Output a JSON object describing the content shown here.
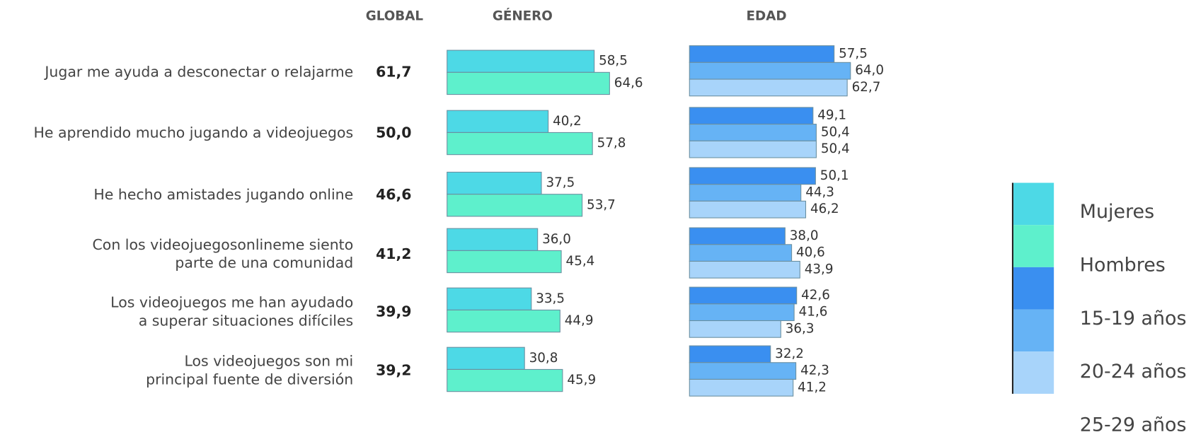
{
  "chart_data": [
    {
      "type": "bar",
      "title": "GÉNERO",
      "categories": [
        "Jugar me ayuda a desconectar o relajarme",
        "He aprendido mucho jugando a videojuegos",
        "He hecho amistades jugando online",
        "Con los videojuegosonlineme siento\nparte de una comunidad",
        "Los videojuegos me han ayudado\na superar situaciones difíciles",
        "Los videojuegos son mi\nprincipal fuente de diversión"
      ],
      "series": [
        {
          "name": "Mujeres",
          "color": "#4dd9e6",
          "values": [
            58.5,
            40.2,
            37.5,
            36.0,
            33.5,
            30.8
          ],
          "value_labels": [
            "58,5",
            "40,2",
            "37,5",
            "36,0",
            "33,5",
            "30,8"
          ]
        },
        {
          "name": "Hombres",
          "color": "#5ef0cc",
          "values": [
            64.6,
            57.8,
            53.7,
            45.4,
            44.9,
            45.9
          ],
          "value_labels": [
            "64,6",
            "57,8",
            "53,7",
            "45,4",
            "44,9",
            "45,9"
          ]
        }
      ]
    },
    {
      "type": "bar",
      "title": "EDAD",
      "series": [
        {
          "name": "15-19 años",
          "color": "#3a8ff0",
          "values": [
            57.5,
            49.1,
            50.1,
            38.0,
            42.6,
            32.2
          ],
          "value_labels": [
            "57,5",
            "49,1",
            "50,1",
            "38,0",
            "42,6",
            "32,2"
          ]
        },
        {
          "name": "20-24 años",
          "color": "#66b3f5",
          "values": [
            64.0,
            50.4,
            44.3,
            40.6,
            41.6,
            42.3
          ],
          "value_labels": [
            "64,0",
            "50,4",
            "44,3",
            "40,6",
            "41,6",
            "42,3"
          ]
        },
        {
          "name": "25-29 años",
          "color": "#a8d4fa",
          "values": [
            62.7,
            50.4,
            46.2,
            43.9,
            36.3,
            41.2
          ],
          "value_labels": [
            "62,7",
            "50,4",
            "46,2",
            "43,9",
            "36,3",
            "41,2"
          ]
        }
      ]
    }
  ],
  "global": {
    "title": "GLOBAL",
    "values": [
      61.7,
      50.0,
      46.6,
      41.2,
      39.9,
      39.2
    ],
    "value_labels": [
      "61,7",
      "50,0",
      "46,6",
      "41,2",
      "39,9",
      "39,2"
    ]
  }
}
